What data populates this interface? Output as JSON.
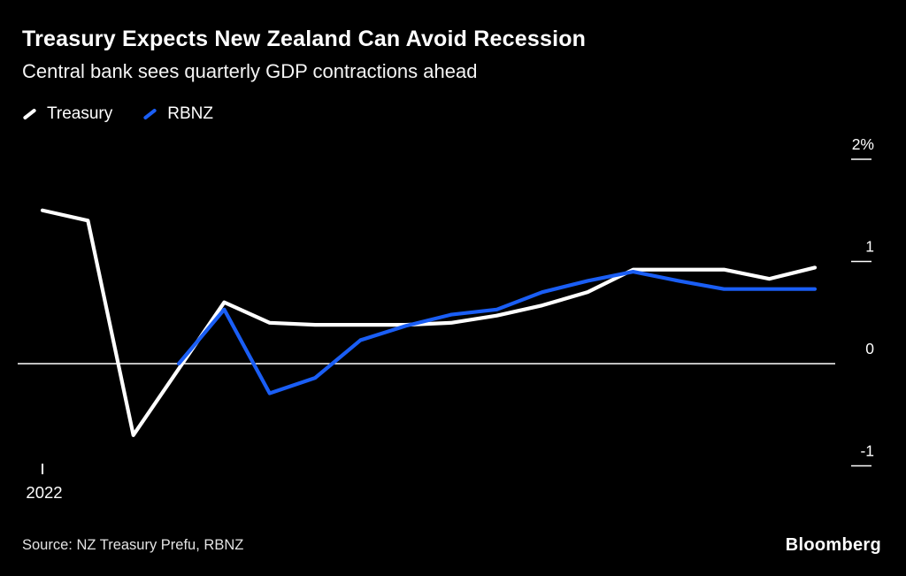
{
  "title": "Treasury Expects New Zealand Can Avoid Recession",
  "subtitle": "Central bank sees quarterly GDP contractions ahead",
  "legend": [
    {
      "label": "Treasury",
      "color": "#ffffff"
    },
    {
      "label": "RBNZ",
      "color": "#1a5ef5"
    }
  ],
  "source": "Source: NZ Treasury Prefu, RBNZ",
  "brand": "Bloomberg",
  "colors": {
    "background": "#000000",
    "treasury_line": "#ffffff",
    "rbnz_line": "#1a5ef5",
    "axis": "#ffffff",
    "muted_text": "#e3e3e3"
  },
  "chart_data": {
    "type": "line",
    "x": [
      0,
      1,
      2,
      3,
      4,
      5,
      6,
      7,
      8,
      9,
      10,
      11,
      12,
      13,
      14,
      15,
      16,
      17
    ],
    "x_unit": "quarter",
    "series": [
      {
        "name": "Treasury",
        "color": "#ffffff",
        "values": [
          1.5,
          1.4,
          -0.7,
          -0.05,
          0.6,
          0.4,
          0.38,
          0.38,
          0.38,
          0.4,
          0.47,
          0.57,
          0.7,
          0.92,
          0.92,
          0.92,
          0.83,
          0.94
        ]
      },
      {
        "name": "RBNZ",
        "color": "#1a5ef5",
        "values": [
          null,
          null,
          null,
          0.0,
          0.53,
          -0.29,
          -0.14,
          0.23,
          0.37,
          0.48,
          0.53,
          0.7,
          0.81,
          0.9,
          0.81,
          0.73,
          0.73,
          0.73
        ]
      }
    ],
    "yticks": [
      {
        "label": "2%",
        "value": 2
      },
      {
        "label": "1",
        "value": 1
      },
      {
        "label": "0",
        "value": 0
      },
      {
        "label": "-1",
        "value": -1
      }
    ],
    "xticks": [
      {
        "label": "2022",
        "index": 0
      }
    ],
    "ylim": [
      -1.2,
      2.2
    ],
    "baseline": 0,
    "grid": false,
    "legend_position": "top-left",
    "title": "Treasury Expects New Zealand Can Avoid Recession",
    "subtitle": "Central bank sees quarterly GDP contractions ahead"
  }
}
